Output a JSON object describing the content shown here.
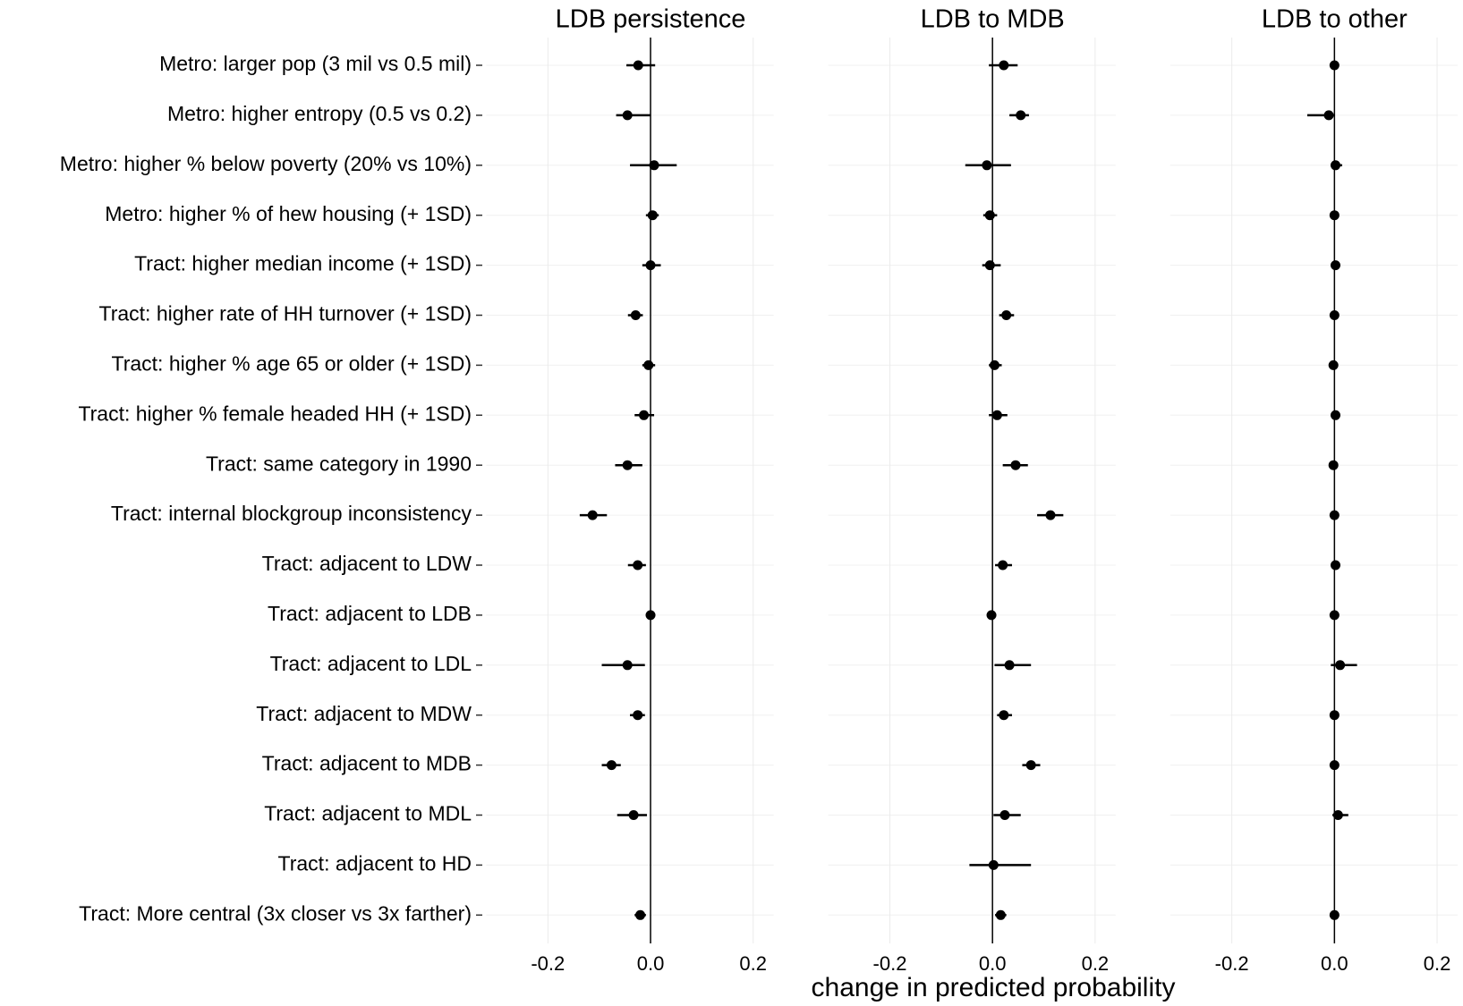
{
  "chart_data": {
    "type": "dot",
    "xlabel": "change in predicted probability",
    "color": "#000000",
    "grid": true,
    "categories": [
      "Metro: larger pop (3 mil vs 0.5 mil)",
      "Metro: higher entropy (0.5 vs 0.2)",
      "Metro: higher % below poverty (20% vs 10%)",
      "Metro: higher % of hew housing (+ 1SD)",
      "Tract: higher median income (+ 1SD)",
      "Tract: higher rate of HH turnover (+ 1SD)",
      "Tract: higher % age 65 or older (+ 1SD)",
      "Tract: higher % female headed HH (+ 1SD)",
      "Tract: same category in 1990",
      "Tract: internal blockgroup inconsistency",
      "Tract: adjacent to LDW",
      "Tract: adjacent to LDB",
      "Tract: adjacent to LDL",
      "Tract: adjacent to MDW",
      "Tract: adjacent to MDB",
      "Tract: adjacent to MDL",
      "Tract: adjacent to HD",
      "Tract: More central (3x closer vs 3x farther)"
    ],
    "panels": [
      {
        "title": "LDB persistence",
        "values": [
          -0.024,
          -0.045,
          0.007,
          0.004,
          0.0,
          -0.029,
          -0.004,
          -0.013,
          -0.045,
          -0.113,
          -0.025,
          0.0,
          -0.045,
          -0.025,
          -0.076,
          -0.033,
          null,
          -0.02
        ],
        "lower": [
          -0.047,
          -0.067,
          -0.04,
          -0.009,
          -0.016,
          -0.044,
          -0.016,
          -0.031,
          -0.069,
          -0.138,
          -0.044,
          -0.007,
          -0.095,
          -0.04,
          -0.095,
          -0.065,
          null,
          -0.031
        ],
        "upper": [
          0.009,
          0.0,
          0.051,
          0.016,
          0.02,
          -0.015,
          0.009,
          0.007,
          -0.016,
          -0.085,
          -0.009,
          0.007,
          -0.011,
          -0.011,
          -0.058,
          -0.007,
          null,
          -0.009
        ],
        "xlim": [
          -0.32,
          0.24
        ],
        "xticks": [
          -0.2,
          {
            "value": 0,
            "label": "0.0"
          },
          0.2
        ]
      },
      {
        "title": "LDB to MDB",
        "values": [
          0.022,
          0.055,
          -0.011,
          -0.005,
          -0.005,
          0.027,
          0.004,
          0.009,
          0.045,
          0.113,
          0.02,
          -0.002,
          0.033,
          0.022,
          0.075,
          0.024,
          0.002,
          0.016
        ],
        "lower": [
          -0.007,
          0.033,
          -0.053,
          -0.018,
          -0.02,
          0.013,
          -0.007,
          -0.007,
          0.02,
          0.087,
          0.005,
          -0.007,
          0.004,
          0.009,
          0.058,
          0.002,
          -0.045,
          0.005
        ],
        "upper": [
          0.049,
          0.071,
          0.036,
          0.009,
          0.016,
          0.042,
          0.018,
          0.029,
          0.069,
          0.138,
          0.038,
          0.004,
          0.075,
          0.038,
          0.093,
          0.055,
          0.075,
          0.027
        ],
        "xlim": [
          -0.32,
          0.24
        ],
        "xticks": [
          -0.2,
          {
            "value": 0,
            "label": "0.0"
          },
          0.2
        ]
      },
      {
        "title": "LDB to other",
        "values": [
          0.0,
          -0.011,
          0.002,
          0.0,
          0.002,
          0.0,
          -0.002,
          0.002,
          -0.002,
          0.0,
          0.002,
          0.0,
          0.011,
          0.0,
          0.0,
          0.007,
          null,
          0.0
        ],
        "lower": [
          -0.003,
          -0.053,
          -0.007,
          -0.004,
          -0.002,
          -0.004,
          -0.005,
          -0.002,
          -0.007,
          -0.004,
          -0.002,
          -0.004,
          -0.007,
          -0.004,
          -0.004,
          -0.004,
          null,
          -0.004
        ],
        "upper": [
          0.003,
          0.0,
          0.015,
          0.004,
          0.006,
          0.004,
          0.002,
          0.006,
          0.004,
          0.004,
          0.006,
          0.004,
          0.044,
          0.004,
          0.004,
          0.027,
          null,
          0.004
        ],
        "xlim": [
          -0.32,
          0.24
        ],
        "xticks": [
          -0.2,
          {
            "value": 0,
            "label": "0.0"
          },
          0.2
        ]
      }
    ]
  }
}
